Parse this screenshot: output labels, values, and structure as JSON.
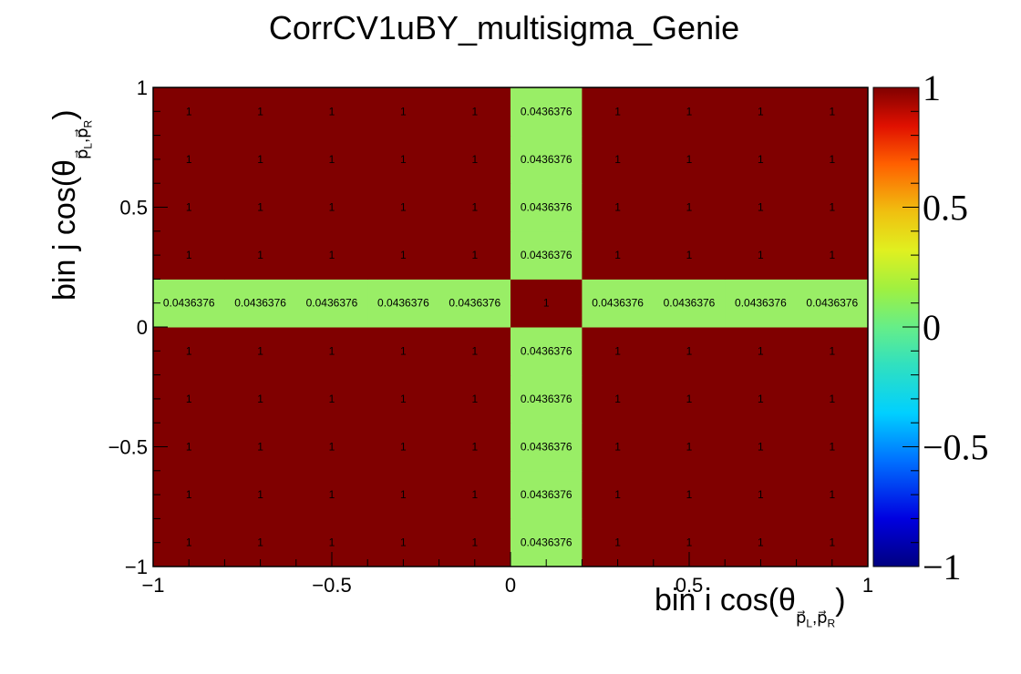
{
  "chart_data": {
    "type": "heatmap",
    "title": "CorrCV1uBY_multisigma_Genie",
    "xlabel": "bin i cos(θ p_L, p_R)",
    "ylabel": "bin j cos(θ p_L, p_R)",
    "xlim": [
      -1,
      1
    ],
    "ylim": [
      -1,
      1
    ],
    "x_edges": [
      -1,
      -0.8,
      -0.6,
      -0.4,
      -0.2,
      0,
      0.2,
      0.4,
      0.6,
      0.8,
      1
    ],
    "y_edges": [
      -1,
      -0.8,
      -0.6,
      -0.4,
      -0.2,
      0,
      0.2,
      0.4,
      0.6,
      0.8,
      1
    ],
    "x_ticks": [
      -1,
      -0.5,
      0,
      0.5,
      1
    ],
    "y_ticks": [
      -1,
      -0.5,
      0,
      0.5,
      1
    ],
    "x_tick_labels": [
      "−1",
      "−0.5",
      "0",
      "0.5",
      "1"
    ],
    "y_tick_labels": [
      "−1",
      "−0.5",
      "0",
      "0.5",
      "1"
    ],
    "z_range": [
      -1,
      1
    ],
    "z_ticks": [
      -1,
      -0.5,
      0,
      0.5,
      1
    ],
    "z_tick_labels": [
      "−1",
      "−0.5",
      "0",
      "0.5",
      "1"
    ],
    "value_labels": {
      "low": "0.0436376",
      "high": "1"
    },
    "values": [
      [
        1,
        1,
        1,
        1,
        1,
        0.0436376,
        1,
        1,
        1,
        1
      ],
      [
        1,
        1,
        1,
        1,
        1,
        0.0436376,
        1,
        1,
        1,
        1
      ],
      [
        1,
        1,
        1,
        1,
        1,
        0.0436376,
        1,
        1,
        1,
        1
      ],
      [
        1,
        1,
        1,
        1,
        1,
        0.0436376,
        1,
        1,
        1,
        1
      ],
      [
        1,
        1,
        1,
        1,
        1,
        0.0436376,
        1,
        1,
        1,
        1
      ],
      [
        0.0436376,
        0.0436376,
        0.0436376,
        0.0436376,
        0.0436376,
        1,
        0.0436376,
        0.0436376,
        0.0436376,
        0.0436376
      ],
      [
        1,
        1,
        1,
        1,
        1,
        0.0436376,
        1,
        1,
        1,
        1
      ],
      [
        1,
        1,
        1,
        1,
        1,
        0.0436376,
        1,
        1,
        1,
        1
      ],
      [
        1,
        1,
        1,
        1,
        1,
        0.0436376,
        1,
        1,
        1,
        1
      ],
      [
        1,
        1,
        1,
        1,
        1,
        0.0436376,
        1,
        1,
        1,
        1
      ]
    ],
    "values_row_order": "bottom-to-top (row 0 = y bin [-1,-0.8])",
    "colors": {
      "high": "#800000",
      "low": "#99ee66",
      "frame": "#000000"
    },
    "palette": "rainbow (dark blue at -1 to dark red at 1)",
    "grid": false,
    "legend": "color bar right"
  }
}
